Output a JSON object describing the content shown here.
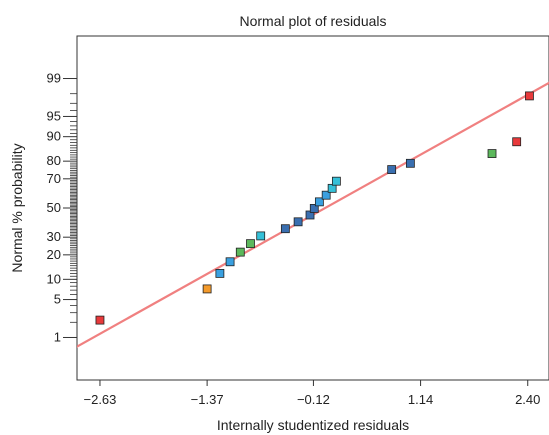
{
  "chart_data": {
    "type": "scatter",
    "title": "Normal plot of residuals",
    "xlabel": "Internally studentized residuals",
    "ylabel": "Normal % probability",
    "x_ticks": [
      -2.63,
      -1.37,
      -0.12,
      1.14,
      2.4
    ],
    "x_tick_labels": [
      "-2.63",
      "-1.37",
      "-0.12",
      "1.14",
      "2.40"
    ],
    "y_ticks": [
      1,
      5,
      10,
      20,
      30,
      50,
      70,
      80,
      90,
      95,
      99
    ],
    "y_tick_labels": [
      "1",
      "5",
      "10",
      "20",
      "30",
      "50",
      "70",
      "80",
      "90",
      "95",
      "99"
    ],
    "y_scale": "normal probability",
    "xlim": [
      -2.9,
      2.65
    ],
    "ylim": [
      0.1,
      99.9
    ],
    "reference_line": {
      "color": "#f08080",
      "points": [
        {
          "x": -3.0,
          "y": 0.5
        },
        {
          "x": 2.7,
          "y": 98.9
        }
      ]
    },
    "points": [
      {
        "x": -2.63,
        "y": 2.2,
        "color": "#e8393b"
      },
      {
        "x": -1.37,
        "y": 7.3,
        "color": "#f39a2b"
      },
      {
        "x": -1.22,
        "y": 12.0,
        "color": "#3aa0e0"
      },
      {
        "x": -1.1,
        "y": 16.7,
        "color": "#3aa0e0"
      },
      {
        "x": -0.98,
        "y": 21.4,
        "color": "#5cb85c"
      },
      {
        "x": -0.86,
        "y": 26.1,
        "color": "#5cb85c"
      },
      {
        "x": -0.74,
        "y": 30.8,
        "color": "#35c0d8"
      },
      {
        "x": -0.45,
        "y": 35.5,
        "color": "#3a6fb0"
      },
      {
        "x": -0.3,
        "y": 40.2,
        "color": "#3a6fb0"
      },
      {
        "x": -0.16,
        "y": 45.0,
        "color": "#3a6fb0"
      },
      {
        "x": -0.11,
        "y": 49.7,
        "color": "#3a6fb0"
      },
      {
        "x": -0.05,
        "y": 54.4,
        "color": "#3aa0e0"
      },
      {
        "x": 0.03,
        "y": 59.1,
        "color": "#3aa0e0"
      },
      {
        "x": 0.1,
        "y": 63.8,
        "color": "#35c0d8"
      },
      {
        "x": 0.15,
        "y": 68.5,
        "color": "#35c0d8"
      },
      {
        "x": 0.8,
        "y": 75.5,
        "color": "#3a6fb0"
      },
      {
        "x": 1.02,
        "y": 78.9,
        "color": "#3a6fb0"
      },
      {
        "x": 1.98,
        "y": 83.6,
        "color": "#5cb85c"
      },
      {
        "x": 2.27,
        "y": 88.3,
        "color": "#e8393b"
      },
      {
        "x": 2.42,
        "y": 97.8,
        "color": "#e8393b"
      }
    ]
  }
}
